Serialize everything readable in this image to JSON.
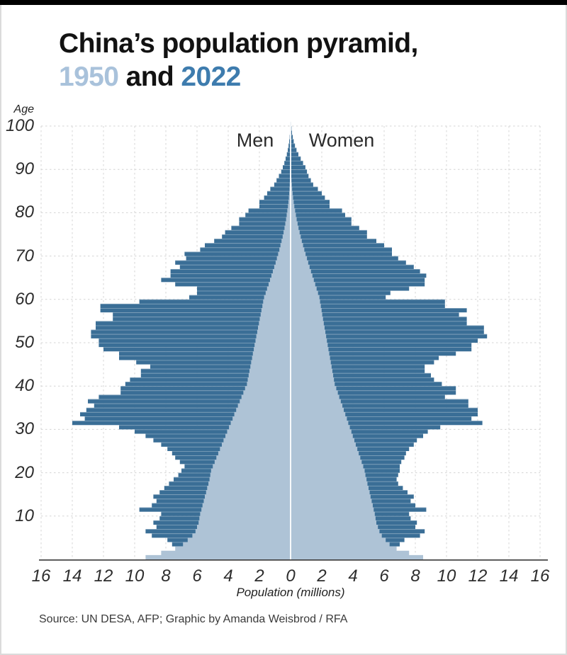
{
  "page": {
    "title_line1": "China’s population pyramid,",
    "title_year1": "1950",
    "title_and": " and ",
    "title_year2": "2022",
    "source": "Source: UN DESA, AFP; Graphic by Amanda Weisbrod / RFA"
  },
  "colors": {
    "bar_2022": "#3a6e96",
    "area_1950": "#aec3d6",
    "title_1950": "#a9c2db",
    "title_2022": "#3e7cae",
    "gridline": "#d4d4d4",
    "axis_line": "#414141",
    "center_line": "#ffffff",
    "top_bar": "#000000"
  },
  "chart_data": {
    "type": "bar",
    "subtype": "population-pyramid",
    "title": "China’s population pyramid, 1950 and 2022",
    "xlabel": "Population (millions)",
    "ylabel": "Age",
    "left_label": "Men",
    "right_label": "Women",
    "grid": true,
    "x_max": 16,
    "x_tick_step": 2,
    "x_tick_labels": [
      "16",
      "14",
      "12",
      "10",
      "8",
      "6",
      "4",
      "2",
      "0",
      "2",
      "4",
      "6",
      "8",
      "10",
      "12",
      "14",
      "16"
    ],
    "y_tick_labels": [
      "100",
      "90",
      "80",
      "70",
      "60",
      "50",
      "40",
      "30",
      "20",
      "10"
    ],
    "age_min": 0,
    "age_max": 100,
    "series": [
      {
        "name": "2022",
        "color": "#3a6e96",
        "men": [
          4.9,
          5.5,
          6.2,
          7.6,
          7.9,
          8.9,
          9.3,
          8.6,
          8.8,
          8.4,
          8.3,
          9.7,
          8.9,
          8.6,
          8.8,
          8.4,
          8.1,
          7.8,
          7.5,
          7.2,
          7.0,
          6.8,
          7.1,
          7.4,
          7.6,
          7.9,
          8.3,
          8.8,
          9.3,
          10.0,
          11.0,
          14.0,
          13.2,
          13.5,
          13.1,
          12.6,
          13.0,
          12.3,
          10.9,
          10.9,
          10.6,
          10.3,
          9.6,
          9.6,
          9.0,
          9.9,
          11.0,
          11.0,
          12.0,
          12.3,
          12.3,
          12.8,
          12.8,
          12.5,
          12.5,
          11.4,
          11.4,
          12.2,
          12.2,
          9.7,
          6.5,
          6.0,
          6.0,
          7.4,
          8.3,
          7.7,
          7.7,
          7.1,
          7.4,
          6.7,
          6.8,
          5.8,
          5.5,
          4.9,
          4.4,
          4.2,
          3.8,
          3.3,
          3.3,
          2.9,
          2.7,
          2.0,
          2.0,
          1.7,
          1.5,
          1.3,
          1.05,
          0.9,
          0.75,
          0.6,
          0.5,
          0.4,
          0.32,
          0.24,
          0.18,
          0.13,
          0.09,
          0.06,
          0.04,
          0.03,
          0.02
        ],
        "women": [
          4.5,
          5.1,
          5.8,
          7.0,
          7.3,
          8.3,
          8.6,
          8.0,
          8.1,
          7.7,
          7.6,
          8.7,
          8.0,
          7.7,
          7.9,
          7.5,
          7.2,
          6.9,
          6.8,
          6.9,
          7.0,
          7.0,
          7.1,
          7.3,
          7.4,
          7.6,
          7.9,
          8.1,
          8.5,
          8.8,
          9.6,
          12.3,
          11.6,
          12.0,
          12.0,
          11.4,
          11.4,
          9.9,
          10.6,
          10.6,
          9.7,
          9.2,
          9.0,
          8.6,
          8.6,
          9.2,
          9.5,
          10.6,
          11.6,
          11.6,
          12.0,
          12.6,
          12.4,
          12.4,
          11.3,
          11.3,
          10.8,
          11.3,
          9.9,
          9.9,
          6.1,
          6.4,
          7.6,
          8.6,
          8.6,
          8.7,
          8.3,
          7.9,
          7.4,
          6.9,
          6.5,
          6.5,
          6.0,
          5.5,
          4.9,
          4.9,
          4.4,
          3.9,
          3.9,
          3.5,
          3.3,
          2.5,
          2.5,
          2.2,
          2.0,
          1.75,
          1.45,
          1.3,
          1.15,
          1.05,
          0.95,
          0.8,
          0.65,
          0.5,
          0.38,
          0.28,
          0.2,
          0.14,
          0.09,
          0.06,
          0.04
        ]
      },
      {
        "name": "1950",
        "color": "#aec3d6",
        "men": [
          9.3,
          8.3,
          7.4,
          6.9,
          6.6,
          6.3,
          6.1,
          6.0,
          5.9,
          5.85,
          5.8,
          5.72,
          5.65,
          5.57,
          5.5,
          5.42,
          5.35,
          5.27,
          5.2,
          5.15,
          5.1,
          4.99,
          4.87,
          4.76,
          4.64,
          4.53,
          4.41,
          4.3,
          4.18,
          4.07,
          3.95,
          3.84,
          3.72,
          3.61,
          3.49,
          3.38,
          3.26,
          3.15,
          3.03,
          2.92,
          2.8,
          2.75,
          2.69,
          2.64,
          2.58,
          2.53,
          2.47,
          2.42,
          2.36,
          2.31,
          2.25,
          2.2,
          2.14,
          2.09,
          2.03,
          1.98,
          1.92,
          1.87,
          1.81,
          1.76,
          1.7,
          1.6,
          1.51,
          1.41,
          1.32,
          1.23,
          1.14,
          1.05,
          0.96,
          0.88,
          0.8,
          0.72,
          0.65,
          0.58,
          0.51,
          0.45,
          0.39,
          0.34,
          0.29,
          0.25,
          0.21,
          0.17,
          0.14,
          0.11,
          0.09,
          0.07,
          0.055,
          0.042,
          0.032,
          0.024,
          0.018,
          0.013,
          0.01,
          0.007,
          0.005,
          0.004,
          0.003,
          0.002,
          0.002,
          0.001,
          0.001
        ],
        "women": [
          8.5,
          7.6,
          6.8,
          6.35,
          6.1,
          5.85,
          5.7,
          5.6,
          5.5,
          5.45,
          5.4,
          5.33,
          5.27,
          5.2,
          5.13,
          5.07,
          5.0,
          4.93,
          4.87,
          4.8,
          4.75,
          4.66,
          4.56,
          4.47,
          4.37,
          4.28,
          4.18,
          4.09,
          3.99,
          3.9,
          3.8,
          3.7,
          3.61,
          3.51,
          3.41,
          3.32,
          3.22,
          3.12,
          3.03,
          2.93,
          2.83,
          2.78,
          2.73,
          2.68,
          2.63,
          2.58,
          2.53,
          2.48,
          2.43,
          2.38,
          2.33,
          2.28,
          2.23,
          2.18,
          2.13,
          2.08,
          2.03,
          1.99,
          1.94,
          1.89,
          1.85,
          1.76,
          1.67,
          1.58,
          1.49,
          1.4,
          1.31,
          1.22,
          1.13,
          1.05,
          0.96,
          0.88,
          0.8,
          0.72,
          0.65,
          0.58,
          0.51,
          0.45,
          0.39,
          0.34,
          0.29,
          0.24,
          0.2,
          0.16,
          0.13,
          0.1,
          0.08,
          0.06,
          0.047,
          0.036,
          0.027,
          0.02,
          0.015,
          0.011,
          0.008,
          0.006,
          0.004,
          0.003,
          0.002,
          0.002,
          0.001
        ]
      }
    ]
  }
}
